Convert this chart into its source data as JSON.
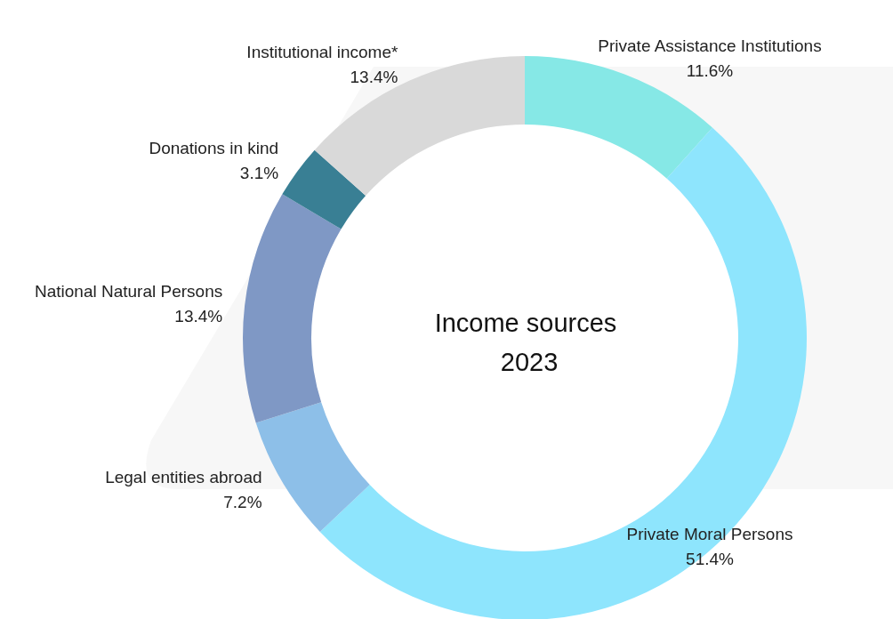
{
  "chart_data": {
    "type": "donut",
    "title": "Income sources 2023",
    "categories": [
      "Private Assistance Institutions",
      "Private Moral Persons",
      "Legal entities abroad",
      "National Natural Persons",
      "Donations in kind",
      "Institutional income*"
    ],
    "values": [
      11.6,
      51.4,
      7.2,
      13.4,
      3.1,
      13.4
    ],
    "colors": [
      "#86e8e6",
      "#8ee5fd",
      "#8dbfe8",
      "#7f98c5",
      "#397f94",
      "#d9d9d9"
    ],
    "value_labels": [
      "11.6%",
      "51.4%",
      "7.2%",
      "13.4%",
      "3.1%",
      "13.4%"
    ],
    "legend": false
  }
}
